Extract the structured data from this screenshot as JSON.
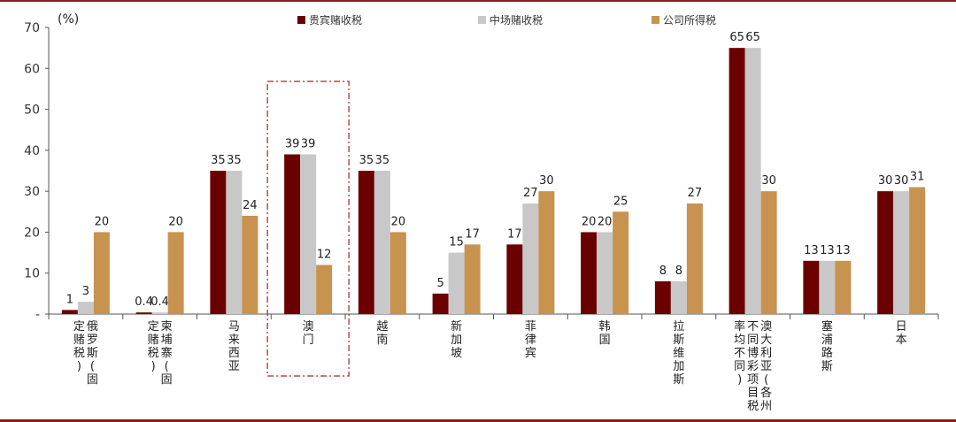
{
  "chart_data": {
    "type": "bar",
    "unit": "(%)",
    "ylim": [
      0,
      70
    ],
    "yticks": [
      "-",
      "10",
      "20",
      "30",
      "40",
      "50",
      "60",
      "70"
    ],
    "colors": [
      "#6b0000",
      "#c8c8c8",
      "#c8924f"
    ],
    "legend_position": "top",
    "categories": [
      "俄罗斯(固定赌税)",
      "柬埔寨(固定赌税)",
      "马来西亚",
      "澳门",
      "越南",
      "新加坡",
      "菲律宾",
      "韩国",
      "拉斯维加斯",
      "澳大利亚(各州不同博彩项目税率均不同)",
      "塞浦路斯",
      "日本"
    ],
    "series": [
      {
        "name": "贵宾赌收税",
        "values": [
          1,
          0.4,
          35,
          39,
          35,
          5,
          17,
          20,
          8,
          65,
          13,
          30
        ],
        "labels": [
          "1",
          "0.4",
          "35",
          "39",
          "35",
          "5",
          "17",
          "20",
          "8",
          "65",
          "13",
          "30"
        ]
      },
      {
        "name": "中场赌收税",
        "values": [
          3,
          0.4,
          35,
          39,
          35,
          15,
          27,
          20,
          8,
          65,
          13,
          30
        ],
        "labels": [
          "3",
          "0.4",
          "35",
          "39",
          "35",
          "15",
          "27",
          "20",
          "8",
          "65",
          "13",
          "30"
        ]
      },
      {
        "name": "公司所得税",
        "values": [
          20,
          20,
          24,
          12,
          20,
          17,
          30,
          25,
          27,
          30,
          13,
          31
        ],
        "labels": [
          "20",
          "20",
          "24",
          "12",
          "20",
          "17",
          "30",
          "25",
          "27",
          "30",
          "13",
          "31"
        ]
      }
    ],
    "highlight_category": "澳门"
  }
}
